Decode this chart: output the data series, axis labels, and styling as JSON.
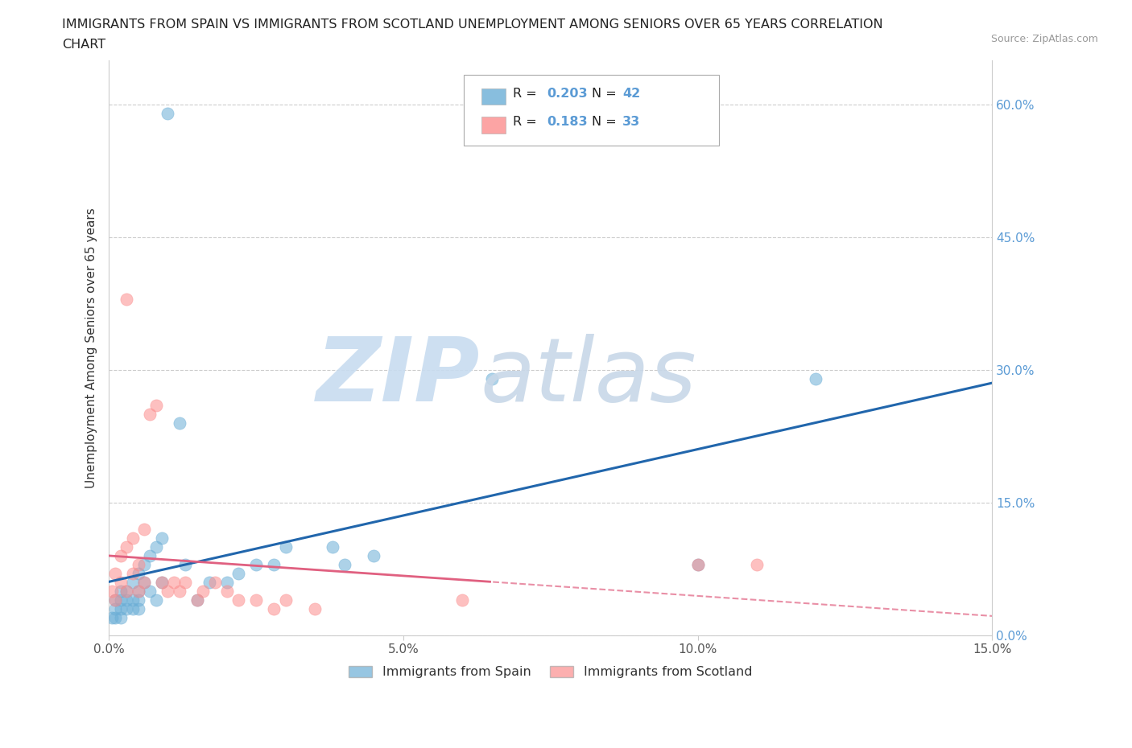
{
  "title_line1": "IMMIGRANTS FROM SPAIN VS IMMIGRANTS FROM SCOTLAND UNEMPLOYMENT AMONG SENIORS OVER 65 YEARS CORRELATION",
  "title_line2": "CHART",
  "source": "Source: ZipAtlas.com",
  "ylabel": "Unemployment Among Seniors over 65 years",
  "xlim": [
    0.0,
    0.15
  ],
  "ylim": [
    0.0,
    0.65
  ],
  "x_ticks": [
    0.0,
    0.05,
    0.1,
    0.15
  ],
  "x_tick_labels": [
    "0.0%",
    "5.0%",
    "10.0%",
    "15.0%"
  ],
  "y_ticks": [
    0.0,
    0.15,
    0.3,
    0.45,
    0.6
  ],
  "y_tick_labels": [
    "0.0%",
    "15.0%",
    "30.0%",
    "45.0%",
    "60.0%"
  ],
  "spain_color": "#6baed6",
  "scotland_color": "#fc8d8d",
  "spain_line_color": "#2166ac",
  "scotland_line_color": "#e06080",
  "spain_R": 0.203,
  "spain_N": 42,
  "scotland_R": 0.183,
  "scotland_N": 33,
  "legend_label_spain": "Immigrants from Spain",
  "legend_label_scotland": "Immigrants from Scotland",
  "spain_x": [
    0.0005,
    0.001,
    0.001,
    0.001,
    0.002,
    0.002,
    0.002,
    0.002,
    0.003,
    0.003,
    0.003,
    0.004,
    0.004,
    0.004,
    0.005,
    0.005,
    0.005,
    0.005,
    0.006,
    0.006,
    0.007,
    0.007,
    0.008,
    0.008,
    0.009,
    0.009,
    0.01,
    0.012,
    0.013,
    0.015,
    0.017,
    0.02,
    0.022,
    0.025,
    0.028,
    0.03,
    0.038,
    0.04,
    0.045,
    0.065,
    0.1,
    0.12
  ],
  "spain_y": [
    0.02,
    0.03,
    0.04,
    0.02,
    0.04,
    0.03,
    0.05,
    0.02,
    0.05,
    0.03,
    0.04,
    0.06,
    0.04,
    0.03,
    0.07,
    0.05,
    0.04,
    0.03,
    0.08,
    0.06,
    0.09,
    0.05,
    0.1,
    0.04,
    0.11,
    0.06,
    0.59,
    0.24,
    0.08,
    0.04,
    0.06,
    0.06,
    0.07,
    0.08,
    0.08,
    0.1,
    0.1,
    0.08,
    0.09,
    0.29,
    0.08,
    0.29
  ],
  "scotland_x": [
    0.0005,
    0.001,
    0.001,
    0.002,
    0.002,
    0.003,
    0.003,
    0.003,
    0.004,
    0.004,
    0.005,
    0.005,
    0.006,
    0.006,
    0.007,
    0.008,
    0.009,
    0.01,
    0.011,
    0.012,
    0.013,
    0.015,
    0.016,
    0.018,
    0.02,
    0.022,
    0.025,
    0.028,
    0.03,
    0.035,
    0.06,
    0.1,
    0.11
  ],
  "scotland_y": [
    0.05,
    0.07,
    0.04,
    0.09,
    0.06,
    0.1,
    0.38,
    0.05,
    0.11,
    0.07,
    0.08,
    0.05,
    0.12,
    0.06,
    0.25,
    0.26,
    0.06,
    0.05,
    0.06,
    0.05,
    0.06,
    0.04,
    0.05,
    0.06,
    0.05,
    0.04,
    0.04,
    0.03,
    0.04,
    0.03,
    0.04,
    0.08,
    0.08
  ],
  "bg_color": "#ffffff",
  "grid_color": "#cccccc",
  "watermark_zip_color": "#c8dcf0",
  "watermark_atlas_color": "#c8d8e8"
}
